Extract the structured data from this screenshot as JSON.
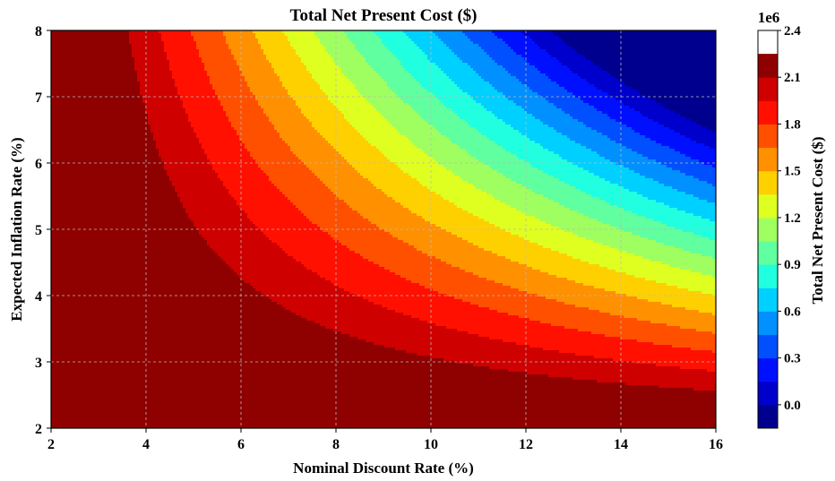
{
  "chart_data": {
    "type": "heatmap",
    "subtype": "filled-contour",
    "title": "Total Net Present Cost ($)",
    "xlabel": "Nominal Discount Rate (%)",
    "ylabel": "Expected Inflation Rate (%)",
    "xlim": [
      2,
      16
    ],
    "ylim": [
      2,
      8
    ],
    "xticks": [
      "2",
      "4",
      "6",
      "8",
      "10",
      "12",
      "14",
      "16"
    ],
    "yticks": [
      "2",
      "3",
      "4",
      "5",
      "6",
      "7",
      "8"
    ],
    "grid": true,
    "colormap": "jet",
    "colorbar": {
      "label": "Total Net Present Cost ($)",
      "exponent_label": "1e6",
      "min": -0.15,
      "max": 2.4,
      "levels": [
        -0.15,
        0.0,
        0.15,
        0.3,
        0.45,
        0.6,
        0.75,
        0.9,
        1.05,
        1.2,
        1.35,
        1.5,
        1.65,
        1.8,
        1.95,
        2.1,
        2.25,
        2.4
      ],
      "ticks": [
        "0.0",
        "0.3",
        "0.6",
        "0.9",
        "1.2",
        "1.5",
        "1.8",
        "2.1",
        "2.4"
      ],
      "colors": [
        "#00008f",
        "#0000cc",
        "#0010ff",
        "#0050ff",
        "#0090ff",
        "#00d0ff",
        "#20ffdf",
        "#60ff9f",
        "#9fff60",
        "#dfff20",
        "#ffd000",
        "#ff9000",
        "#ff5000",
        "#ff1000",
        "#cf0000",
        "#8f0000"
      ]
    },
    "values_description": "Cost decreases as both discount rate and inflation rate increase; maximum ~2.4e6 at low rates, minimum ~0 near (16, 8)."
  }
}
